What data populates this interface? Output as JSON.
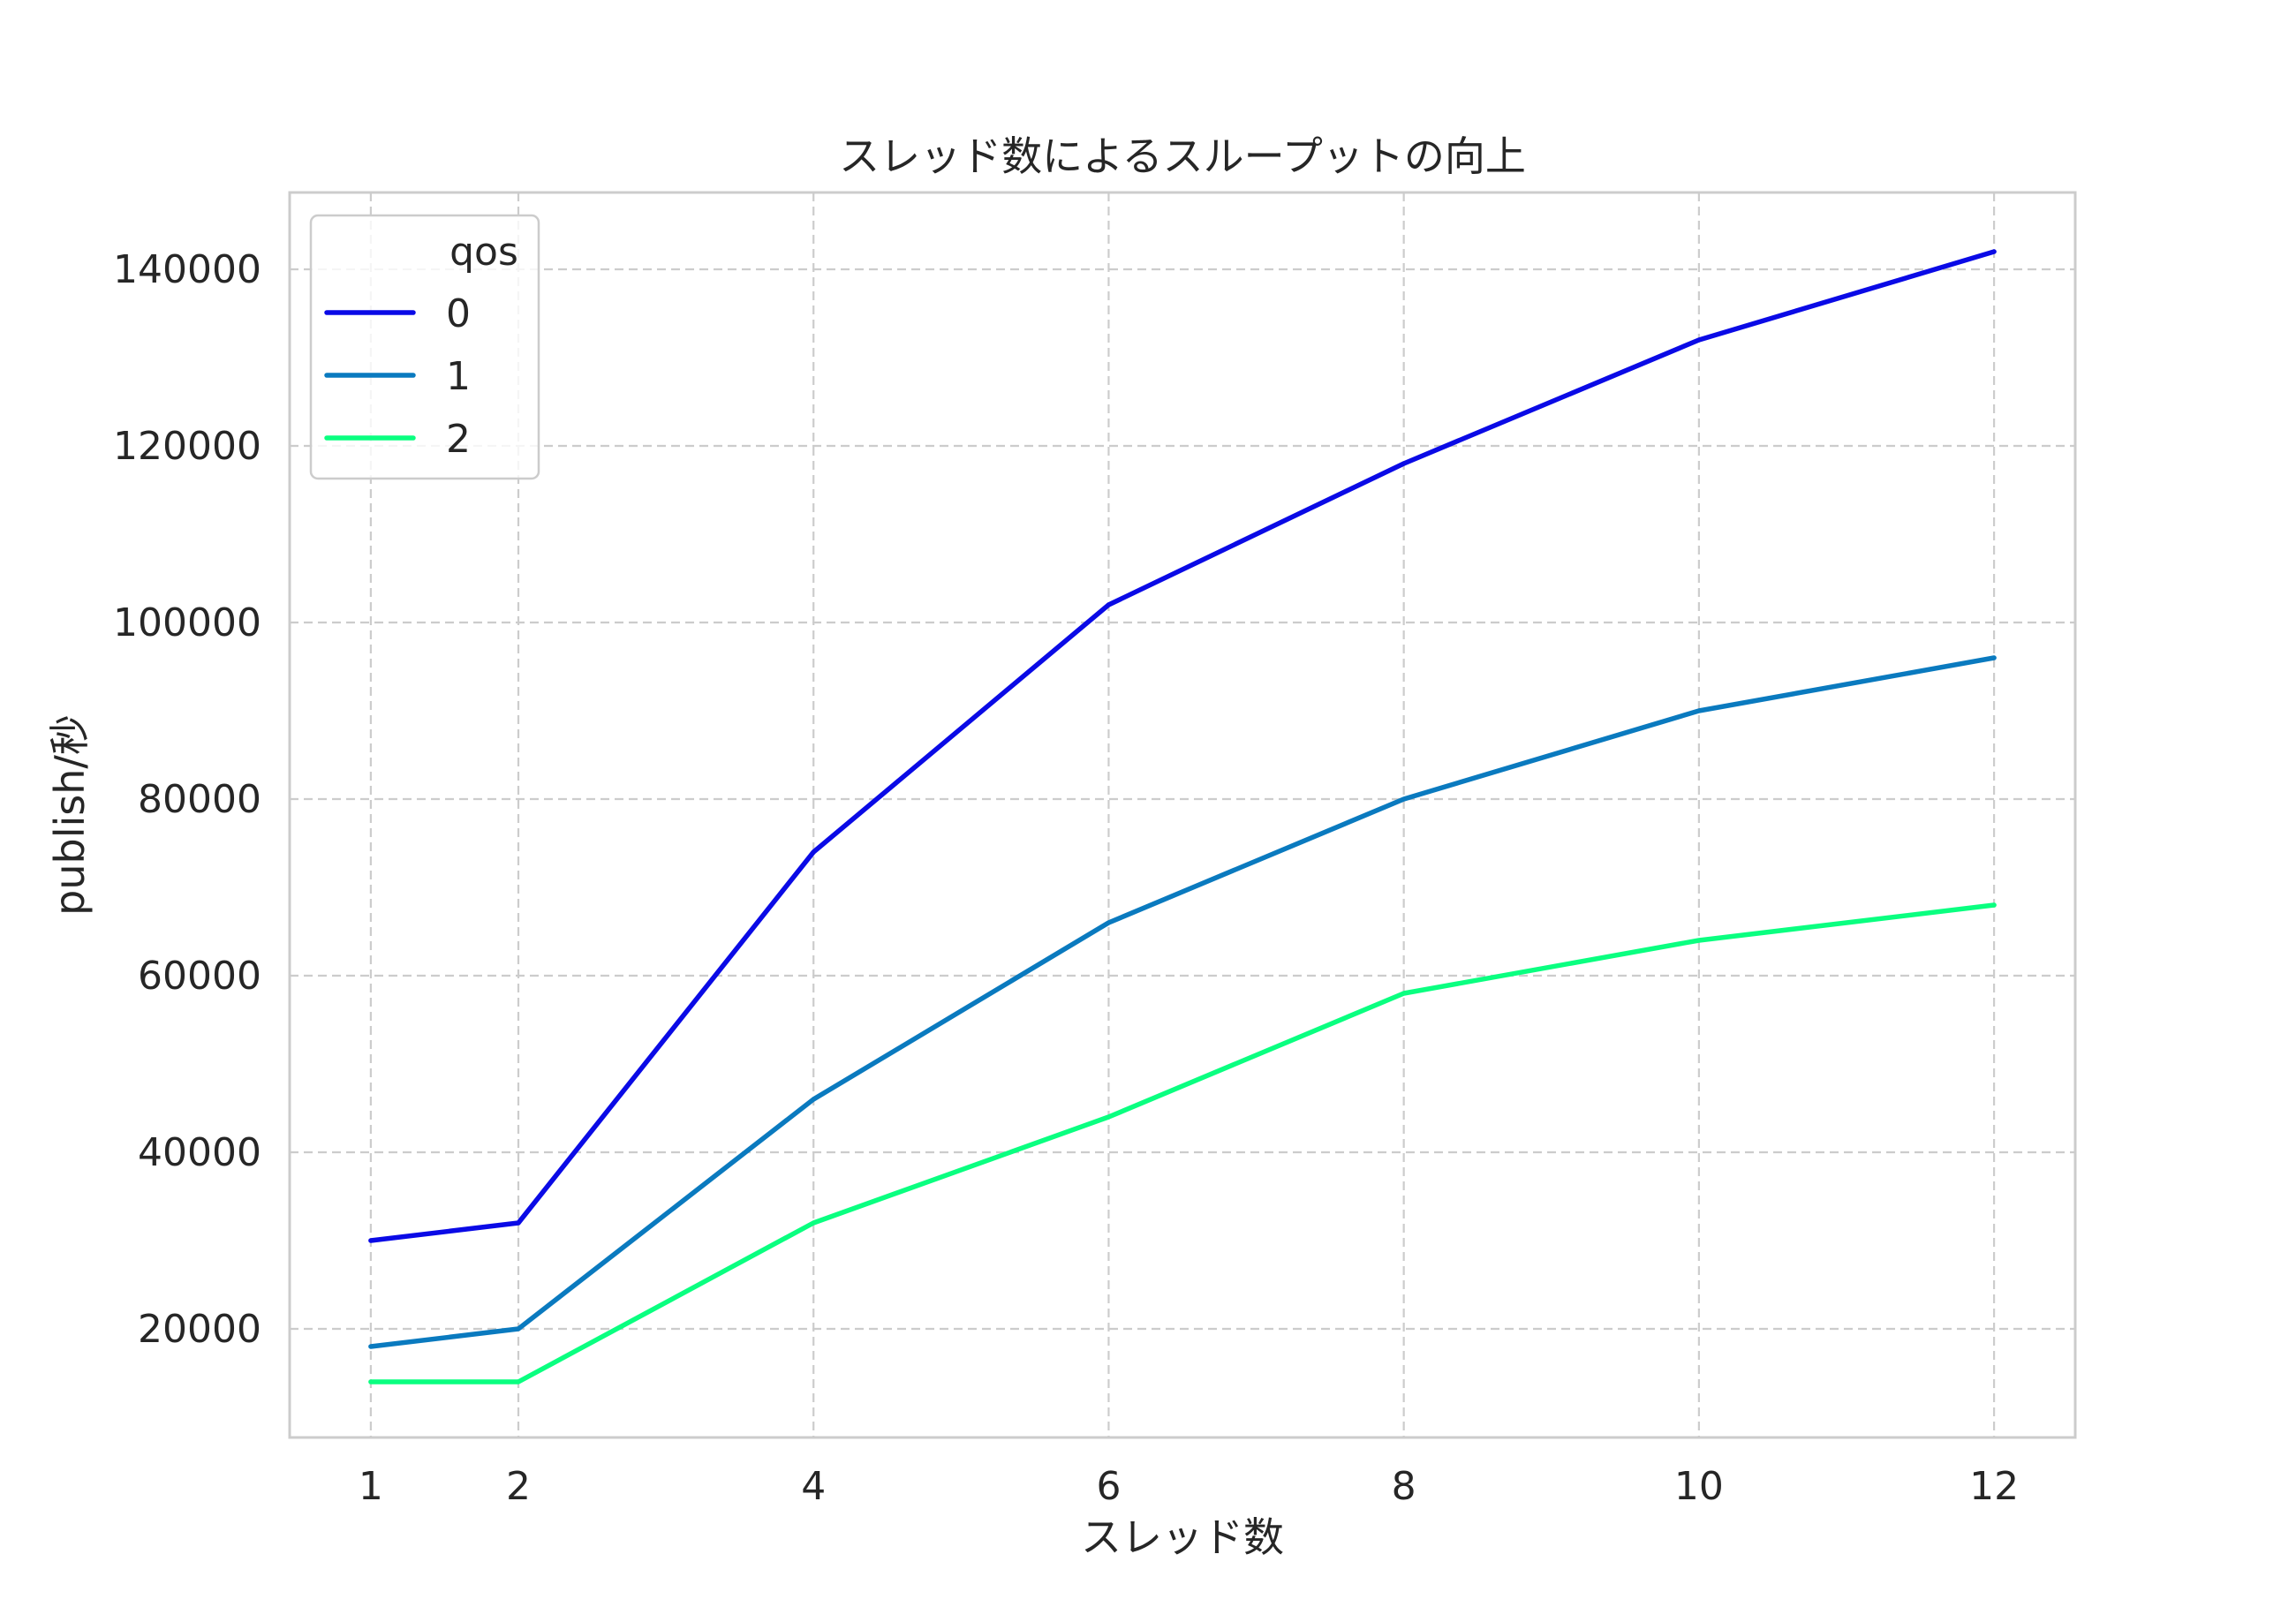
{
  "chart_data": {
    "type": "line",
    "title": "スレッド数によるスループットの向上",
    "xlabel": "スレッド数",
    "ylabel": "publish/秒",
    "x": [
      1,
      2,
      4,
      6,
      8,
      10,
      12
    ],
    "xticks": [
      "1",
      "2",
      "4",
      "6",
      "8",
      "10",
      "12"
    ],
    "yticks": [
      "20000",
      "40000",
      "60000",
      "80000",
      "100000",
      "120000",
      "140000"
    ],
    "ytick_values": [
      20000,
      40000,
      60000,
      80000,
      100000,
      120000,
      140000
    ],
    "xlim": [
      0.45,
      12.55
    ],
    "ylim": [
      7700,
      148700
    ],
    "grid": true,
    "legend": {
      "title": "qos",
      "placement": "upper left"
    },
    "series": [
      {
        "name": "0",
        "color": "#0a0ae6",
        "values": [
          30000,
          32000,
          74000,
          102000,
          118000,
          132000,
          142000
        ]
      },
      {
        "name": "1",
        "color": "#0a7abf",
        "values": [
          18000,
          20000,
          46000,
          66000,
          80000,
          90000,
          96000
        ]
      },
      {
        "name": "2",
        "color": "#0aff80",
        "values": [
          14000,
          14000,
          32000,
          44000,
          58000,
          64000,
          68000
        ]
      }
    ]
  }
}
